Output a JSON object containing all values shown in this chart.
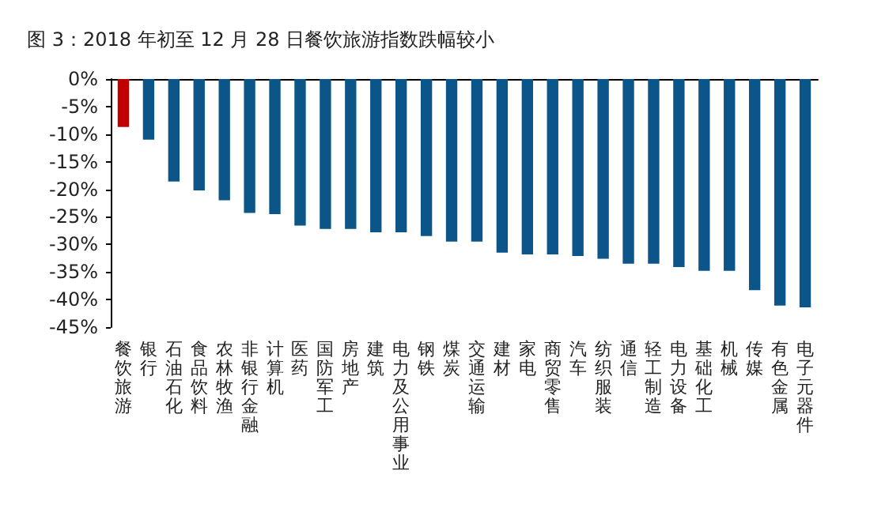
{
  "chart_data": {
    "type": "bar",
    "title": "图 3：2018 年初至 12 月 28 日餐饮旅游指数跌幅较小",
    "categories": [
      "餐饮旅游",
      "银行",
      "石油石化",
      "食品饮料",
      "农林牧渔",
      "非银行金融",
      "计算机",
      "医药",
      "国防军工",
      "房地产",
      "建筑",
      "电力及公用事业",
      "钢铁",
      "煤炭",
      "交通运输",
      "建材",
      "家电",
      "商贸零售",
      "汽车",
      "纺织服装",
      "通信",
      "轻工制造",
      "电力设备",
      "基础化工",
      "机械",
      "传媒",
      "有色金属",
      "电子元器件"
    ],
    "values": [
      -8.7,
      -11.0,
      -18.6,
      -20.2,
      -22.0,
      -24.3,
      -24.5,
      -26.6,
      -27.2,
      -27.2,
      -27.8,
      -27.8,
      -28.5,
      -29.5,
      -29.5,
      -31.5,
      -31.8,
      -31.8,
      -32.1,
      -32.6,
      -33.5,
      -33.5,
      -34.1,
      -34.8,
      -34.8,
      -38.3,
      -41.1,
      -41.4
    ],
    "colors": [
      "#c00000",
      "#0b5588",
      "#0b5588",
      "#0b5588",
      "#0b5588",
      "#0b5588",
      "#0b5588",
      "#0b5588",
      "#0b5588",
      "#0b5588",
      "#0b5588",
      "#0b5588",
      "#0b5588",
      "#0b5588",
      "#0b5588",
      "#0b5588",
      "#0b5588",
      "#0b5588",
      "#0b5588",
      "#0b5588",
      "#0b5588",
      "#0b5588",
      "#0b5588",
      "#0b5588",
      "#0b5588",
      "#0b5588",
      "#0b5588",
      "#0b5588"
    ],
    "ylim": [
      -45,
      0
    ],
    "yticks": [
      {
        "value": -45,
        "label": "-45%"
      },
      {
        "value": -40,
        "label": "-40%"
      },
      {
        "value": -35,
        "label": "-35%"
      },
      {
        "value": -30,
        "label": "-30%"
      },
      {
        "value": -25,
        "label": "-25%"
      },
      {
        "value": -20,
        "label": "-20%"
      },
      {
        "value": -15,
        "label": "-15%"
      },
      {
        "value": -10,
        "label": "-10%"
      },
      {
        "value": -5,
        "label": "-5%"
      },
      {
        "value": 0,
        "label": "0%"
      }
    ],
    "grid": false
  }
}
